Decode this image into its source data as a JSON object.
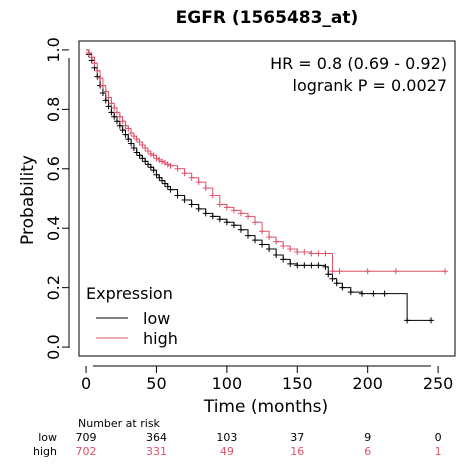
{
  "chart_data": {
    "type": "line",
    "subtype": "kaplan-meier",
    "title": "EGFR (1565483_at)",
    "xlabel": "Time (months)",
    "ylabel": "Probability",
    "xlim": [
      -5,
      262
    ],
    "ylim": [
      -0.03,
      1.03
    ],
    "x_ticks": [
      0,
      50,
      100,
      150,
      200,
      250
    ],
    "y_ticks": [
      0.0,
      0.2,
      0.4,
      0.6,
      0.8,
      1.0
    ],
    "grid": false,
    "legend": {
      "title": "Expression",
      "position": "bottom-left",
      "entries": [
        "low",
        "high"
      ]
    },
    "annotations": {
      "hr": "HR = 0.8 (0.69 - 0.92)",
      "logrank": "logrank P = 0.0027"
    },
    "series": [
      {
        "name": "low",
        "color": "#000000",
        "x": [
          0,
          2,
          4,
          6,
          8,
          10,
          12,
          14,
          16,
          18,
          20,
          22,
          24,
          26,
          28,
          30,
          32,
          34,
          36,
          38,
          40,
          42,
          44,
          46,
          48,
          50,
          52,
          54,
          56,
          58,
          60,
          65,
          70,
          75,
          80,
          85,
          90,
          95,
          100,
          105,
          110,
          115,
          120,
          125,
          130,
          135,
          140,
          145,
          150,
          155,
          160,
          165,
          170,
          172,
          175,
          178,
          182,
          188,
          196,
          204,
          212,
          228,
          245
        ],
        "y": [
          1.0,
          0.985,
          0.965,
          0.94,
          0.91,
          0.88,
          0.855,
          0.83,
          0.81,
          0.79,
          0.775,
          0.76,
          0.745,
          0.73,
          0.715,
          0.7,
          0.685,
          0.67,
          0.655,
          0.645,
          0.635,
          0.625,
          0.615,
          0.605,
          0.595,
          0.58,
          0.57,
          0.56,
          0.55,
          0.54,
          0.53,
          0.51,
          0.495,
          0.48,
          0.465,
          0.45,
          0.44,
          0.43,
          0.42,
          0.41,
          0.395,
          0.375,
          0.36,
          0.345,
          0.33,
          0.31,
          0.295,
          0.28,
          0.275,
          0.275,
          0.275,
          0.275,
          0.27,
          0.245,
          0.23,
          0.215,
          0.2,
          0.185,
          0.18,
          0.18,
          0.18,
          0.09,
          0.09
        ],
        "at_risk": [
          709,
          364,
          103,
          37,
          9,
          0
        ]
      },
      {
        "name": "high",
        "color": "#DF536B",
        "x": [
          0,
          2,
          4,
          6,
          8,
          10,
          12,
          14,
          16,
          18,
          20,
          22,
          24,
          26,
          28,
          30,
          32,
          34,
          36,
          38,
          40,
          42,
          44,
          46,
          48,
          50,
          52,
          54,
          56,
          58,
          60,
          65,
          70,
          75,
          80,
          85,
          90,
          95,
          100,
          105,
          110,
          115,
          120,
          125,
          130,
          135,
          140,
          145,
          150,
          155,
          160,
          165,
          170,
          175,
          180,
          200,
          220,
          255
        ],
        "y": [
          1.0,
          0.99,
          0.975,
          0.955,
          0.93,
          0.905,
          0.88,
          0.86,
          0.84,
          0.82,
          0.805,
          0.79,
          0.775,
          0.76,
          0.745,
          0.735,
          0.72,
          0.71,
          0.7,
          0.69,
          0.68,
          0.67,
          0.66,
          0.65,
          0.645,
          0.635,
          0.63,
          0.625,
          0.62,
          0.615,
          0.61,
          0.6,
          0.585,
          0.57,
          0.555,
          0.535,
          0.51,
          0.48,
          0.47,
          0.46,
          0.45,
          0.44,
          0.42,
          0.39,
          0.37,
          0.355,
          0.34,
          0.33,
          0.32,
          0.32,
          0.315,
          0.315,
          0.315,
          0.255,
          0.255,
          0.255,
          0.255,
          0.255
        ],
        "at_risk": [
          702,
          331,
          49,
          16,
          6,
          1
        ]
      }
    ],
    "risk_table": {
      "label": "Number at risk",
      "times": [
        0,
        50,
        100,
        150,
        200,
        250
      ]
    }
  }
}
